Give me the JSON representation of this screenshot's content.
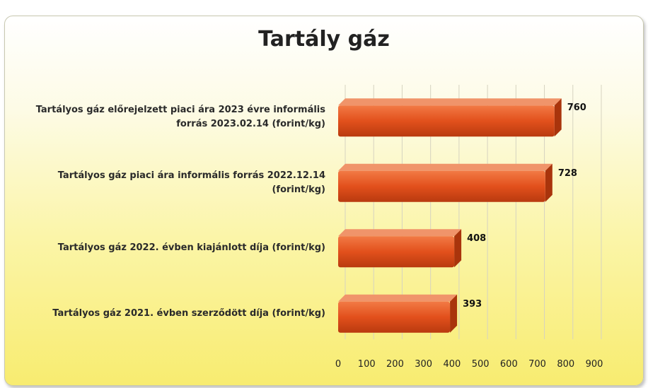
{
  "chart_data": {
    "type": "bar",
    "orientation": "horizontal",
    "title": "Tartály gáz",
    "categories": [
      "Tartályos gáz előrejelzett piaci ára 2023 évre informális forrás 2023.02.14 (forint/kg)",
      "Tartályos gáz piaci ára informális forrás 2022.12.14 (forint/kg)",
      "Tartályos gáz 2022. évben kiajánlott díja (forint/kg)",
      "Tartályos gáz 2021. évben szerződött díja (forint/kg)"
    ],
    "values": [
      760,
      728,
      408,
      393
    ],
    "color": "#e2501c",
    "xlim": [
      0,
      900
    ],
    "xticks": [
      0,
      100,
      200,
      300,
      400,
      500,
      600,
      700,
      800,
      900
    ],
    "grid": true
  }
}
